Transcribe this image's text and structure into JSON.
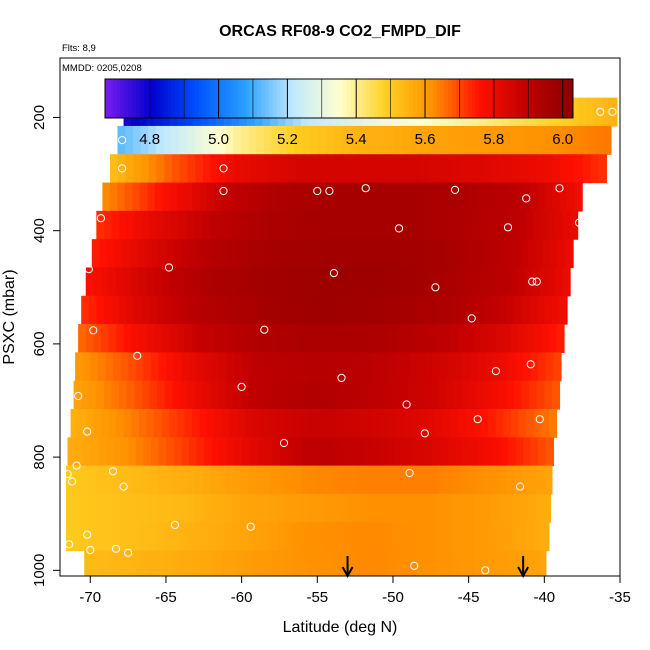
{
  "chart_data": {
    "type": "heatmap",
    "title": "ORCAS RF08-9 CO2_FMPD_DIF",
    "notes": {
      "flights": "Flts: 8,9",
      "dates": "MMDD: 0205,0208"
    },
    "xlabel": "Latitude (deg N)",
    "ylabel": "PSXC (mbar)",
    "xlim": [
      -72,
      -35
    ],
    "ylim": [
      1010,
      95
    ],
    "x_ticks": [
      -70,
      -65,
      -60,
      -55,
      -50,
      -45,
      -40,
      -35
    ],
    "y_ticks": [
      200,
      400,
      600,
      800,
      1000
    ],
    "colorbar": {
      "range": [
        4.67,
        6.03
      ],
      "ticks": [
        4.8,
        5.0,
        5.2,
        5.4,
        5.6,
        5.8,
        6.0
      ],
      "colors": [
        "#7a1cf0",
        "#0000cc",
        "#0055ff",
        "#2aa0ff",
        "#bfe8ff",
        "#ffffd0",
        "#ffd020",
        "#ff9000",
        "#ff1000",
        "#c00000",
        "#8a0000"
      ]
    },
    "bands": [
      {
        "p": 190,
        "x0": -67.8,
        "x1": -35.2,
        "v": [
          4.78,
          4.9,
          5.06,
          5.22,
          5.3,
          5.36,
          5.42,
          5.48,
          5.55
        ]
      },
      {
        "p": 240,
        "x0": -68.2,
        "x1": -35.6,
        "v": [
          5.12,
          5.25,
          5.4,
          5.5,
          5.55,
          5.58,
          5.6,
          5.62,
          5.65
        ]
      },
      {
        "p": 290,
        "x0": -68.7,
        "x1": -35.9,
        "v": [
          5.52,
          5.68,
          5.8,
          5.85,
          5.85,
          5.85,
          5.83,
          5.8,
          5.72
        ]
      },
      {
        "p": 340,
        "x0": -69.2,
        "x1": -37.5,
        "v": [
          5.62,
          5.76,
          5.88,
          5.94,
          5.96,
          5.96,
          5.94,
          5.9,
          5.78
        ]
      },
      {
        "p": 390,
        "x0": -69.6,
        "x1": -37.8,
        "v": [
          5.72,
          5.82,
          5.9,
          5.95,
          5.96,
          5.96,
          5.94,
          5.9,
          5.8
        ]
      },
      {
        "p": 440,
        "x0": -69.9,
        "x1": -38.1,
        "v": [
          5.74,
          5.84,
          5.92,
          5.96,
          5.97,
          5.97,
          5.95,
          5.9,
          5.8
        ]
      },
      {
        "p": 490,
        "x0": -70.3,
        "x1": -38.3,
        "v": [
          5.76,
          5.86,
          5.94,
          5.97,
          5.98,
          5.98,
          5.95,
          5.9,
          5.8
        ]
      },
      {
        "p": 540,
        "x0": -70.6,
        "x1": -38.5,
        "v": [
          5.72,
          5.84,
          5.92,
          5.96,
          5.98,
          5.97,
          5.94,
          5.88,
          5.78
        ]
      },
      {
        "p": 590,
        "x0": -70.8,
        "x1": -38.7,
        "v": [
          5.66,
          5.78,
          5.88,
          5.93,
          5.95,
          5.94,
          5.9,
          5.84,
          5.74
        ]
      },
      {
        "p": 640,
        "x0": -71.0,
        "x1": -38.9,
        "v": [
          5.6,
          5.7,
          5.82,
          5.9,
          5.92,
          5.9,
          5.86,
          5.8,
          5.7
        ]
      },
      {
        "p": 690,
        "x0": -71.1,
        "x1": -39.0,
        "v": [
          5.58,
          5.68,
          5.8,
          5.9,
          5.93,
          5.9,
          5.86,
          5.78,
          5.68
        ]
      },
      {
        "p": 740,
        "x0": -71.3,
        "x1": -39.2,
        "v": [
          5.55,
          5.64,
          5.74,
          5.84,
          5.88,
          5.86,
          5.82,
          5.74,
          5.64
        ]
      },
      {
        "p": 790,
        "x0": -71.5,
        "x1": -39.4,
        "v": [
          5.56,
          5.62,
          5.72,
          5.82,
          5.9,
          5.88,
          5.84,
          5.78,
          5.68
        ]
      },
      {
        "p": 840,
        "x0": -71.6,
        "x1": -39.5,
        "v": [
          5.5,
          5.53,
          5.56,
          5.6,
          5.63,
          5.64,
          5.64,
          5.62,
          5.58
        ]
      },
      {
        "p": 890,
        "x0": -71.6,
        "x1": -39.6,
        "v": [
          5.5,
          5.52,
          5.54,
          5.58,
          5.6,
          5.62,
          5.62,
          5.6,
          5.56
        ]
      },
      {
        "p": 940,
        "x0": -71.6,
        "x1": -39.7,
        "v": [
          5.5,
          5.52,
          5.55,
          5.58,
          5.62,
          5.63,
          5.62,
          5.6,
          5.56
        ]
      },
      {
        "p": 990,
        "x0": -70.4,
        "x1": -39.9,
        "v": [
          5.53,
          5.55,
          5.57,
          5.6,
          5.62,
          5.63,
          5.62,
          5.6,
          5.58
        ]
      }
    ],
    "points": [
      [
        -67.8,
        190
      ],
      [
        -62.8,
        190
      ],
      [
        -56.5,
        190
      ],
      [
        -49.9,
        190
      ],
      [
        -36.3,
        190
      ],
      [
        -35.5,
        190
      ],
      [
        -67.9,
        240
      ],
      [
        -61.2,
        290
      ],
      [
        -67.9,
        290
      ],
      [
        -61.2,
        330
      ],
      [
        -55.0,
        330
      ],
      [
        -54.2,
        330
      ],
      [
        -51.8,
        325
      ],
      [
        -45.9,
        328
      ],
      [
        -41.2,
        343
      ],
      [
        -39.0,
        325
      ],
      [
        -69.3,
        378
      ],
      [
        -49.6,
        396
      ],
      [
        -42.4,
        394
      ],
      [
        -37.7,
        386
      ],
      [
        -70.1,
        468
      ],
      [
        -64.8,
        465
      ],
      [
        -53.9,
        475
      ],
      [
        -47.2,
        500
      ],
      [
        -40.8,
        490
      ],
      [
        -40.5,
        490
      ],
      [
        -69.8,
        576
      ],
      [
        -58.5,
        575
      ],
      [
        -44.8,
        555
      ],
      [
        -38.3,
        588
      ],
      [
        -66.9,
        621
      ],
      [
        -60.0,
        676
      ],
      [
        -53.4,
        660
      ],
      [
        -43.2,
        648
      ],
      [
        -40.9,
        636
      ],
      [
        -70.8,
        692
      ],
      [
        -49.1,
        707
      ],
      [
        -44.4,
        733
      ],
      [
        -40.3,
        733
      ],
      [
        -70.2,
        755
      ],
      [
        -57.2,
        775
      ],
      [
        -47.9,
        758
      ],
      [
        -71.5,
        830
      ],
      [
        -70.9,
        815
      ],
      [
        -68.5,
        825
      ],
      [
        -71.2,
        843
      ],
      [
        -67.8,
        852
      ],
      [
        -48.9,
        828
      ],
      [
        -41.6,
        852
      ],
      [
        -64.4,
        920
      ],
      [
        -59.4,
        923
      ],
      [
        -70.2,
        937
      ],
      [
        -71.4,
        954
      ],
      [
        -70.0,
        964
      ],
      [
        -68.3,
        962
      ],
      [
        -67.5,
        969
      ],
      [
        -48.6,
        992
      ],
      [
        -43.9,
        1000
      ]
    ],
    "arrows": [
      -53.0,
      -41.4
    ]
  }
}
